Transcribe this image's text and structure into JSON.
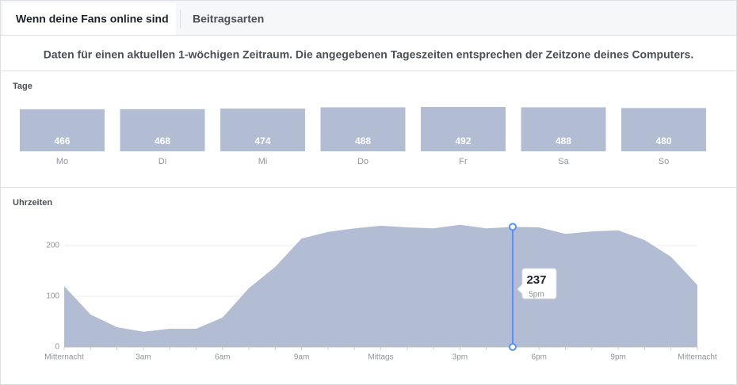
{
  "tabs": [
    "Wenn deine Fans online sind",
    "Beitragsarten"
  ],
  "description": "Daten für einen aktuellen 1-wöchigen Zeitraum. Die angegebenen Tageszeiten entsprechen der Zeitzone deines Computers.",
  "chart_data": [
    {
      "type": "bar",
      "title": "Tage",
      "categories": [
        "Mo",
        "Di",
        "Mi",
        "Do",
        "Fr",
        "Sa",
        "So"
      ],
      "values": [
        466,
        468,
        474,
        488,
        492,
        488,
        480
      ],
      "color": "#b2bdd4"
    },
    {
      "type": "area",
      "title": "Uhrzeiten",
      "categories": [
        "Mitternacht",
        null,
        null,
        "3am",
        null,
        null,
        "6am",
        null,
        null,
        "9am",
        null,
        null,
        "Mittags",
        null,
        null,
        "3pm",
        null,
        null,
        "6pm",
        null,
        null,
        "9pm",
        null,
        null,
        "Mitternacht"
      ],
      "values": [
        120,
        64,
        39,
        30,
        36,
        36,
        58,
        116,
        158,
        214,
        227,
        234,
        239,
        236,
        234,
        241,
        234,
        237,
        236,
        223,
        228,
        230,
        211,
        178,
        122
      ],
      "highlight_label": "5pm",
      "color": "#b2bdd4",
      "line_color": "#5890ff",
      "ylim": [
        0,
        250
      ],
      "yticks": [
        0,
        100,
        200
      ],
      "grid": true
    }
  ]
}
